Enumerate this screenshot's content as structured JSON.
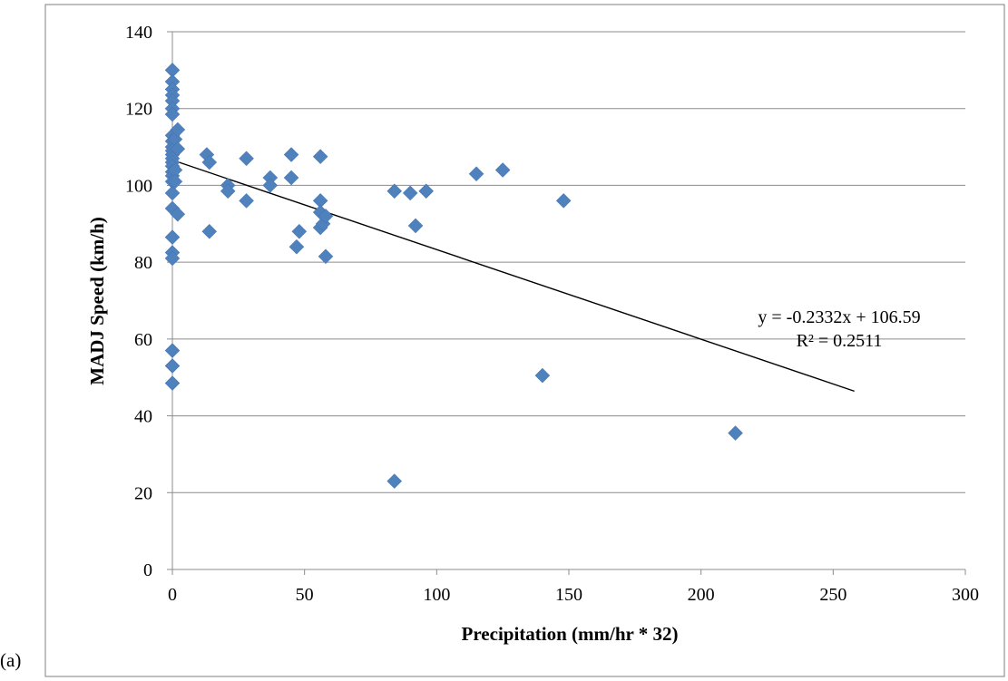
{
  "panel_label": "(a)",
  "chart_data": {
    "type": "scatter",
    "xlabel": "Precipitation (mm/hr * 32)",
    "ylabel": "MADJ Speed (km/h)",
    "xlim": [
      0,
      300
    ],
    "ylim": [
      0,
      140
    ],
    "x_ticks": [
      0,
      50,
      100,
      150,
      200,
      250,
      300
    ],
    "y_ticks": [
      0,
      20,
      40,
      60,
      80,
      100,
      120,
      140
    ],
    "grid": "horizontal",
    "marker": "diamond",
    "marker_color": "#4F81BD",
    "points": [
      [
        0,
        130
      ],
      [
        0,
        127
      ],
      [
        0,
        125
      ],
      [
        0,
        123.5
      ],
      [
        0,
        122
      ],
      [
        0,
        120
      ],
      [
        0,
        118.5
      ],
      [
        0,
        113
      ],
      [
        0,
        111.5
      ],
      [
        0,
        110
      ],
      [
        0,
        109
      ],
      [
        0,
        108
      ],
      [
        0,
        107
      ],
      [
        0,
        106
      ],
      [
        0,
        105
      ],
      [
        0,
        103.5
      ],
      [
        0,
        102.5
      ],
      [
        0,
        101
      ],
      [
        0,
        98
      ],
      [
        0,
        94
      ],
      [
        0,
        86.5
      ],
      [
        0,
        82.5
      ],
      [
        0,
        81
      ],
      [
        0,
        57
      ],
      [
        0,
        53
      ],
      [
        0,
        48.5
      ],
      [
        1,
        112
      ],
      [
        1,
        104
      ],
      [
        1,
        101
      ],
      [
        2,
        114.5
      ],
      [
        2,
        109.5
      ],
      [
        2,
        92.5
      ],
      [
        13,
        108
      ],
      [
        14,
        106
      ],
      [
        14,
        88
      ],
      [
        21,
        100
      ],
      [
        21,
        98.5
      ],
      [
        28,
        107
      ],
      [
        28,
        96
      ],
      [
        37,
        102
      ],
      [
        37,
        100
      ],
      [
        45,
        108
      ],
      [
        45,
        102
      ],
      [
        47,
        84
      ],
      [
        48,
        88
      ],
      [
        56,
        107.5
      ],
      [
        56,
        96
      ],
      [
        56,
        93
      ],
      [
        56,
        89
      ],
      [
        57,
        90
      ],
      [
        58,
        92
      ],
      [
        58,
        81.5
      ],
      [
        84,
        98.5
      ],
      [
        84,
        23
      ],
      [
        90,
        98
      ],
      [
        92,
        89.5
      ],
      [
        96,
        98.5
      ],
      [
        115,
        103
      ],
      [
        125,
        104
      ],
      [
        140,
        50.5
      ],
      [
        148,
        96
      ],
      [
        213,
        35.5
      ]
    ],
    "trendline": {
      "x_range": [
        0,
        258
      ],
      "slope": -0.2332,
      "intercept": 106.59,
      "color": "#000000"
    },
    "annotation": {
      "equation": "y = -0.2332x + 106.59",
      "r_squared": "R² = 0.2511"
    }
  }
}
